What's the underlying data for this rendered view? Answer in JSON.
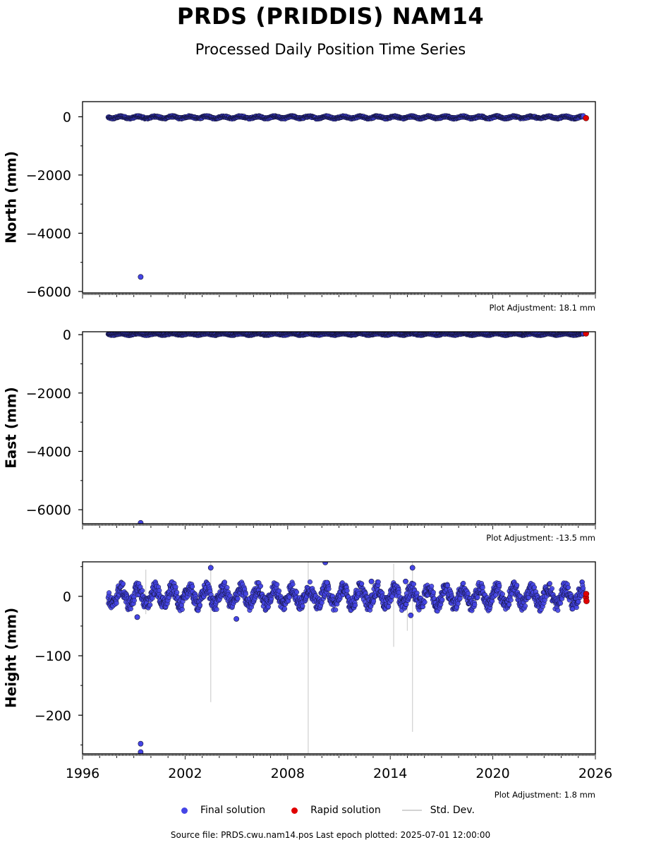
{
  "title": "PRDS (PRIDDIS) NAM14",
  "subtitle": "Processed Daily Position Time Series",
  "footer": "Source file: PRDS.cwu.nam14.pos  Last epoch plotted: 2025-07-01 12:00:00",
  "legend": {
    "final": "Final solution",
    "rapid": "Rapid solution",
    "std": "Std. Dev."
  },
  "colors": {
    "final": "#4545e6",
    "final_edge": "#111133",
    "rapid": "#e00000",
    "std": "#d3d3d3"
  },
  "chart_data": [
    {
      "type": "scatter",
      "ylabel": "North (mm)",
      "adjustment": "Plot Adjustment: 18.1 mm",
      "xlim": [
        1996,
        2026
      ],
      "ylim": [
        -6050,
        520
      ],
      "yticks": [
        0,
        -2000,
        -4000,
        -6000
      ],
      "ytick_labels": [
        "0",
        "−2000",
        "−4000",
        "−6000"
      ],
      "final_range": [
        1997.5,
        2025.3
      ],
      "final_band": [
        -80,
        40
      ],
      "outliers": [
        {
          "x": 1999.4,
          "y": -5500
        }
      ],
      "rapid_points": [
        {
          "x": 2025.45,
          "y": -45
        }
      ]
    },
    {
      "type": "scatter",
      "ylabel": "East (mm)",
      "adjustment": "Plot Adjustment: -13.5 mm",
      "xlim": [
        1996,
        2026
      ],
      "ylim": [
        -6480,
        100
      ],
      "yticks": [
        0,
        -2000,
        -4000,
        -6000
      ],
      "ytick_labels": [
        "0",
        "−2000",
        "−4000",
        "−6000"
      ],
      "final_range": [
        1997.5,
        2025.3
      ],
      "final_band": [
        -30,
        60
      ],
      "outliers": [
        {
          "x": 1999.4,
          "y": -6450
        }
      ],
      "rapid_points": [
        {
          "x": 2025.45,
          "y": 40
        }
      ]
    },
    {
      "type": "scatter",
      "ylabel": "Height (mm)",
      "adjustment": "Plot Adjustment: 1.8 mm",
      "xlim": [
        1996,
        2026
      ],
      "ylim": [
        -265,
        58
      ],
      "yticks": [
        0,
        -100,
        -200
      ],
      "ytick_labels": [
        "0",
        "−100",
        "−200"
      ],
      "xticks": [
        1996,
        2002,
        2008,
        2014,
        2020,
        2026
      ],
      "xtick_labels": [
        "1996",
        "2002",
        "2008",
        "2014",
        "2020",
        "2026"
      ],
      "final_range": [
        1997.5,
        2025.3
      ],
      "final_band": [
        -25,
        25
      ],
      "outliers": [
        {
          "x": 1999.4,
          "y": -248
        },
        {
          "x": 1999.4,
          "y": -262
        },
        {
          "x": 1999.2,
          "y": -35
        },
        {
          "x": 2003.5,
          "y": 48
        },
        {
          "x": 2005.0,
          "y": -38
        },
        {
          "x": 2010.2,
          "y": 57
        },
        {
          "x": 2010.3,
          "y": 23
        },
        {
          "x": 2012.9,
          "y": 25
        },
        {
          "x": 2014.9,
          "y": 25
        },
        {
          "x": 2015.3,
          "y": 48
        },
        {
          "x": 2015.2,
          "y": -32
        }
      ],
      "std_spikes": [
        {
          "x": 2003.5,
          "y1": -178,
          "y2": 58
        },
        {
          "x": 2009.2,
          "y1": -265,
          "y2": 58
        },
        {
          "x": 2014.2,
          "y1": -85,
          "y2": 55
        },
        {
          "x": 2015.3,
          "y1": -228,
          "y2": 58
        },
        {
          "x": 2015.0,
          "y1": -58,
          "y2": 5
        },
        {
          "x": 1999.7,
          "y1": -30,
          "y2": 45
        }
      ],
      "rapid_points": [
        {
          "x": 2025.45,
          "y": -2
        },
        {
          "x": 2025.48,
          "y": -8
        },
        {
          "x": 2025.46,
          "y": 4
        }
      ]
    }
  ]
}
